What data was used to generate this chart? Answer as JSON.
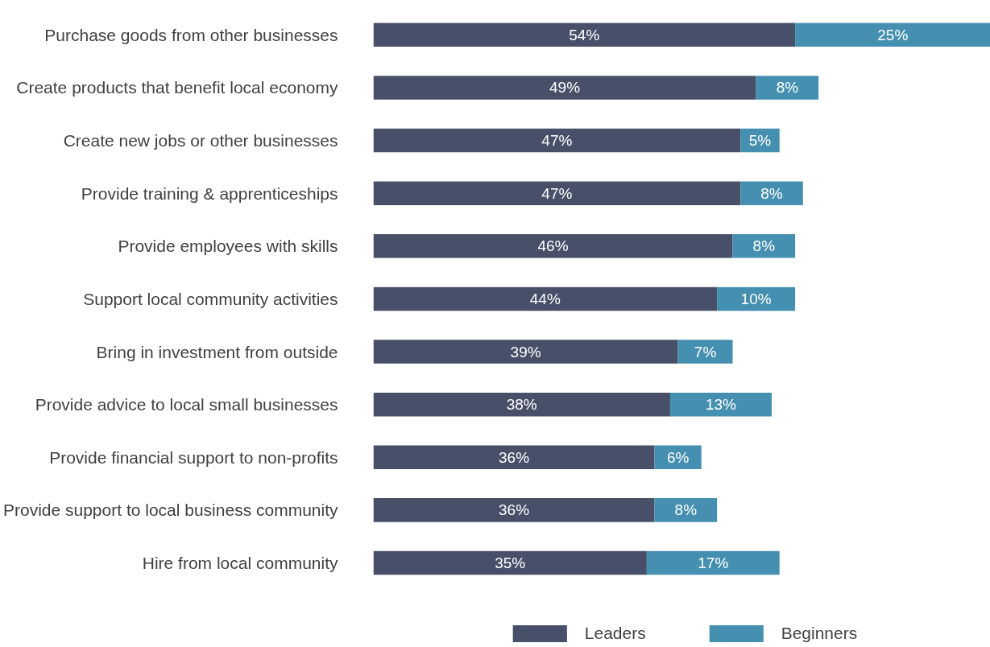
{
  "chart_data": {
    "type": "bar",
    "orientation": "horizontal",
    "stacked": true,
    "grid": false,
    "legend": "bottom",
    "categories": [
      "Purchase goods from other businesses",
      "Create products that benefit local economy",
      "Create new jobs or other businesses",
      "Provide training & apprenticeships",
      "Provide employees with skills",
      "Support local community activities",
      "Bring in investment from outside",
      "Provide advice to local small businesses",
      "Provide financial support to non-profits",
      "Provide support to local business community",
      "Hire from local community"
    ],
    "series": [
      {
        "name": "Leaders",
        "color": "#475068",
        "values": [
          54,
          49,
          47,
          47,
          46,
          44,
          39,
          38,
          36,
          36,
          35
        ],
        "value_labels": [
          "54%",
          "49%",
          "47%",
          "47%",
          "46%",
          "44%",
          "39%",
          "38%",
          "36%",
          "36%",
          "35%"
        ]
      },
      {
        "name": "Beginners",
        "color": "#4590b0",
        "values": [
          25,
          8,
          5,
          8,
          8,
          10,
          7,
          13,
          6,
          8,
          17
        ],
        "value_labels": [
          "25%",
          "8%",
          "5%",
          "8%",
          "8%",
          "10%",
          "7%",
          "13%",
          "6%",
          "8%",
          "17%"
        ]
      }
    ]
  }
}
